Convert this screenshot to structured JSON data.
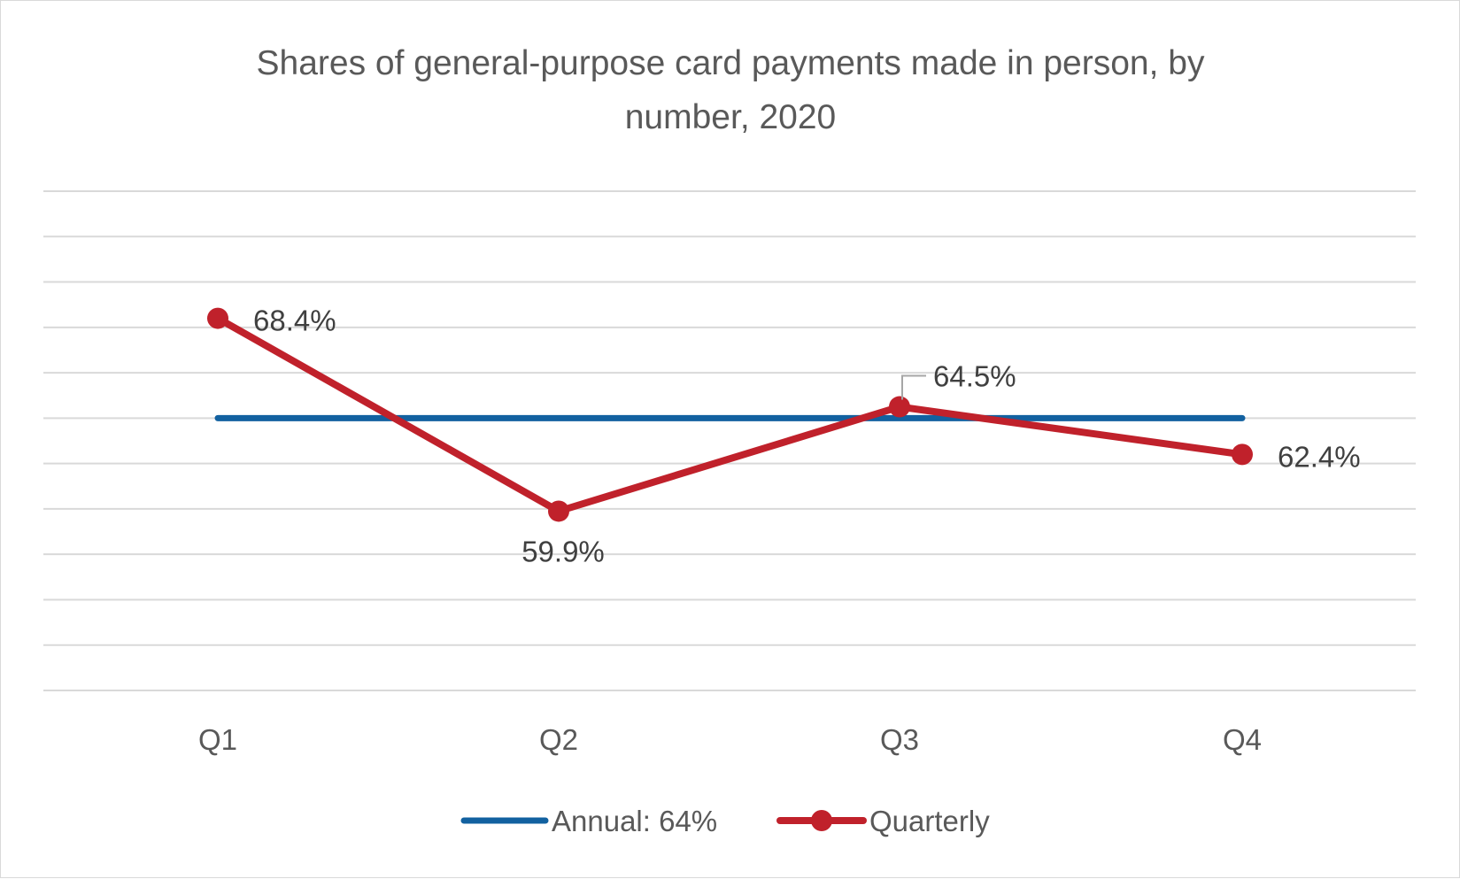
{
  "chart_data": {
    "type": "line",
    "title_lines": [
      "Shares of general-purpose card payments made in person, by",
      "number, 2020"
    ],
    "categories": [
      "Q1",
      "Q2",
      "Q3",
      "Q4"
    ],
    "series": [
      {
        "name": "Annual: 64%",
        "values": [
          64,
          64,
          64,
          64
        ],
        "color": "#1261a0",
        "markers": false,
        "data_labels": [
          "",
          "",
          "",
          ""
        ]
      },
      {
        "name": "Quarterly",
        "values": [
          68.4,
          59.9,
          64.5,
          62.4
        ],
        "color": "#c0212b",
        "markers": true,
        "data_labels": [
          "68.4%",
          "59.9%",
          "64.5%",
          "62.4%"
        ]
      }
    ],
    "ylim": [
      52,
      74
    ],
    "ytick_step": 2,
    "y_axis_labels_shown": false,
    "grid": true,
    "legend_position": "bottom"
  }
}
